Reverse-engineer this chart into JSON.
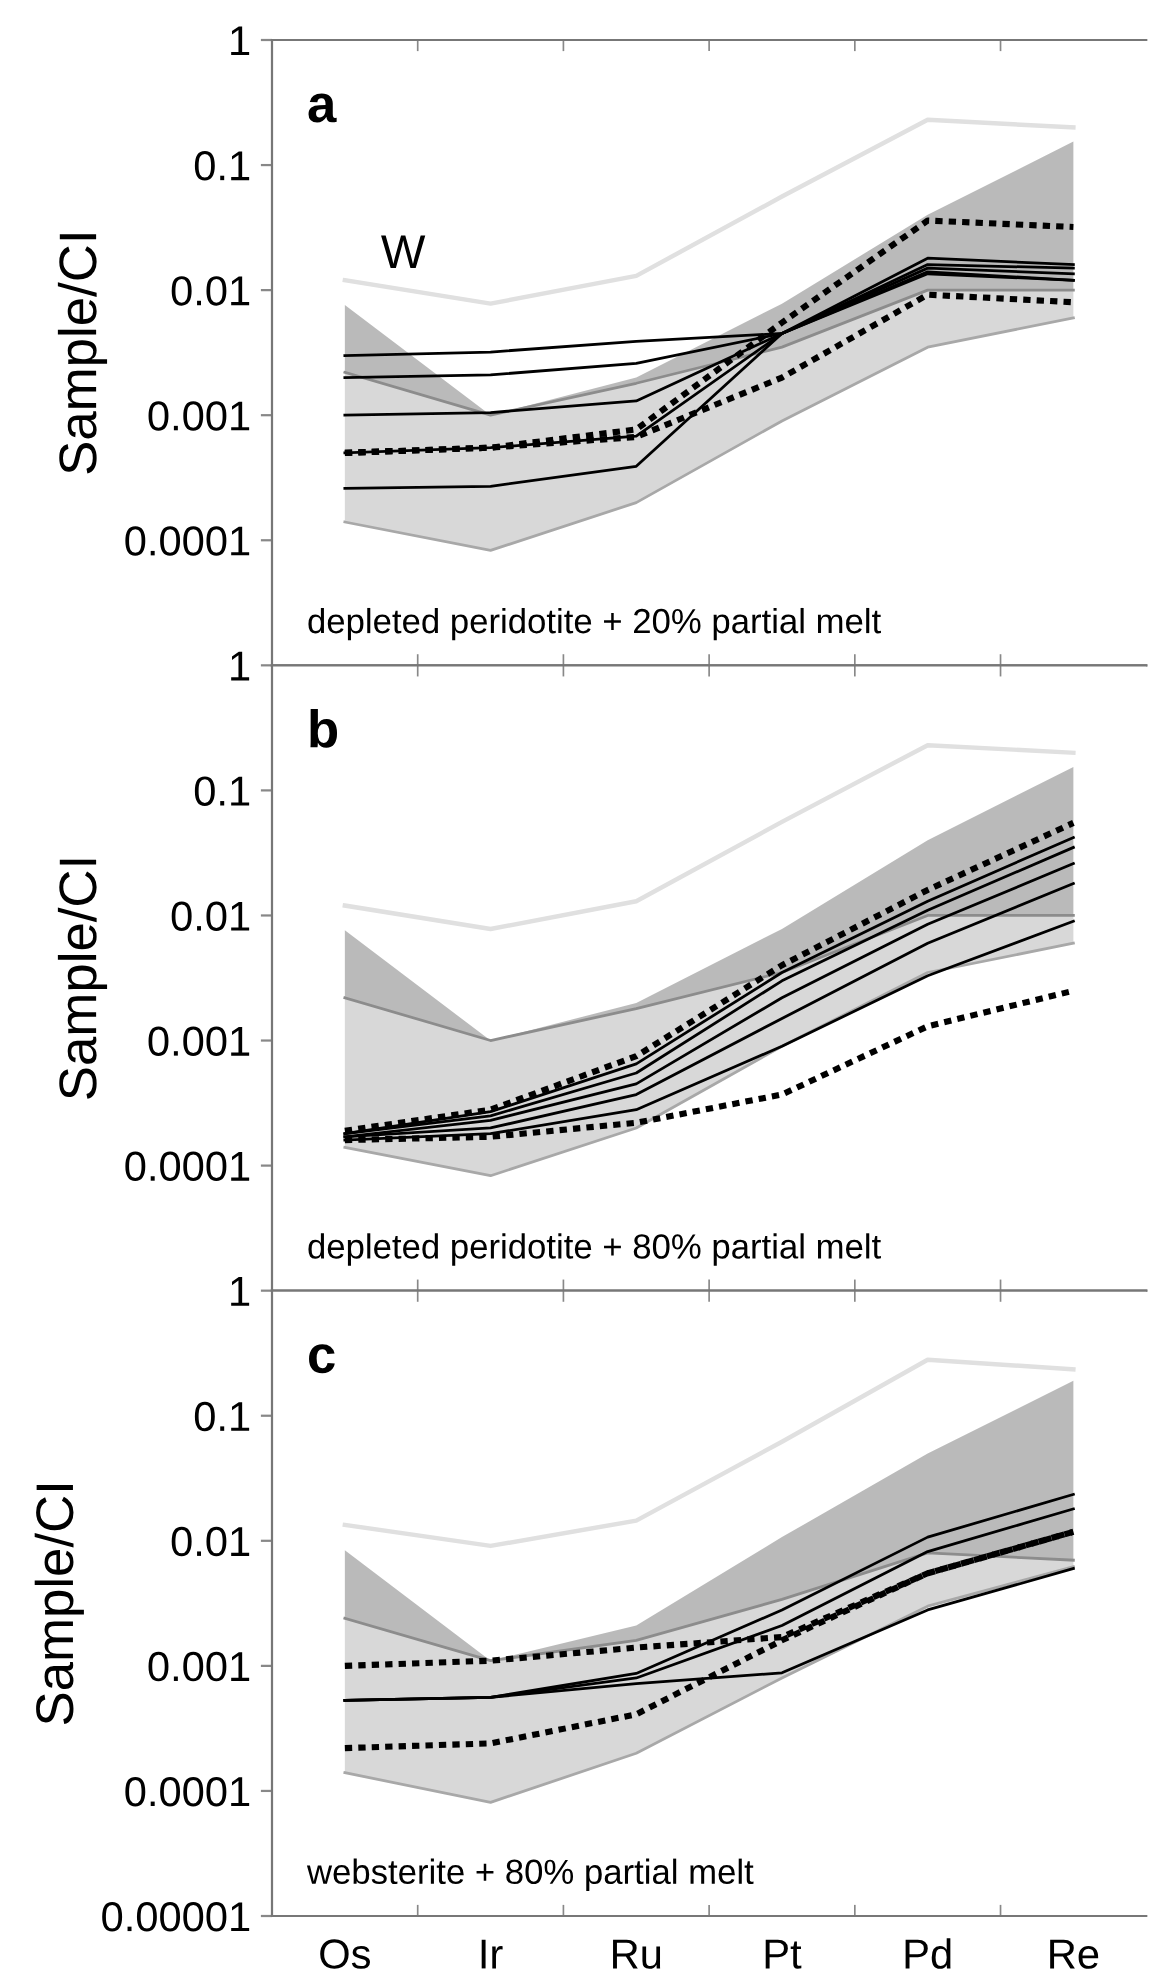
{
  "chart_data": [
    {
      "type": "line",
      "title": "a",
      "ylabel": "Sample/CI",
      "log": true,
      "tick_labels": "y",
      "ylim": [
        1e-05,
        1
      ],
      "yticks": [
        0.0001,
        0.001,
        0.01,
        0.1,
        1
      ],
      "annotations": [
        "depleted peridotite + 20% partial melt",
        "W"
      ],
      "series": [
        {
          "color": "#a8a8a8",
          "line_style": "solid",
          "values": [
            0.00014,
            8.3e-05,
            0.0002,
            0.0009,
            0.0035,
            0.006
          ],
          "lower": [
            0.00014,
            8.3e-05,
            0.0002,
            0.0009,
            0.0035,
            0.006
          ],
          "upper": [
            0.0022,
            0.001,
            0.0018,
            0.0035,
            0.01,
            0.01
          ]
        },
        {
          "color": "#8c8c8c",
          "line_style": "solid",
          "values": [
            0.0022,
            0.001,
            0.0018,
            0.0035,
            0.01,
            0.01
          ],
          "lower": [
            0.0022,
            0.001,
            0.0018,
            0.0035,
            0.01,
            0.01
          ],
          "upper": [
            0.0076,
            0.001,
            0.002,
            0.0078,
            0.04,
            0.154
          ]
        },
        {
          "color": "#e0e0e0",
          "line_style": "solid",
          "values": [
            0.012,
            0.0078,
            0.013,
            0.056,
            0.23,
            0.2
          ]
        },
        {
          "color": "#000000",
          "line_style": "solid",
          "values": [
            0.003,
            0.0032,
            0.0039,
            0.0045,
            0.018,
            0.016
          ]
        },
        {
          "color": "#000000",
          "line_style": "solid",
          "values": [
            0.002,
            0.0021,
            0.0026,
            0.0045,
            0.016,
            0.015
          ]
        },
        {
          "color": "#000000",
          "line_style": "solid",
          "values": [
            0.001,
            0.00105,
            0.0013,
            0.0045,
            0.015,
            0.0135
          ]
        },
        {
          "color": "#000000",
          "line_style": "solid",
          "values": [
            0.0005,
            0.00055,
            0.00068,
            0.0045,
            0.014,
            0.012
          ]
        },
        {
          "color": "#000000",
          "line_style": "solid",
          "values": [
            0.00026,
            0.00027,
            0.00039,
            0.0045,
            0.0135,
            0.012
          ]
        },
        {
          "color": "#000000",
          "line_style": "dotted",
          "values": [
            0.0005,
            0.00055,
            0.00077,
            0.0055,
            0.036,
            0.032
          ]
        },
        {
          "color": "#000000",
          "line_style": "dotted",
          "values": [
            0.0005,
            0.00055,
            0.00067,
            0.002,
            0.0092,
            0.008
          ]
        }
      ]
    },
    {
      "type": "line",
      "title": "b",
      "ylabel": "Sample/CI",
      "log": true,
      "tick_labels": "y",
      "ylim": [
        1e-05,
        1
      ],
      "yticks": [
        0.0001,
        0.001,
        0.01,
        0.1,
        1
      ],
      "annotations": [
        "depleted peridotite + 80% partial melt"
      ],
      "series": [
        {
          "color": "#a8a8a8",
          "line_style": "solid",
          "values": [
            0.00014,
            8.3e-05,
            0.0002,
            0.0009,
            0.0035,
            0.006
          ],
          "lower": [
            0.00014,
            8.3e-05,
            0.0002,
            0.0009,
            0.0035,
            0.006
          ],
          "upper": [
            0.0022,
            0.001,
            0.0018,
            0.0035,
            0.01,
            0.01
          ]
        },
        {
          "color": "#8c8c8c",
          "line_style": "solid",
          "values": [
            0.0022,
            0.001,
            0.0018,
            0.0035,
            0.01,
            0.01
          ],
          "lower": [
            0.0022,
            0.001,
            0.0018,
            0.0035,
            0.01,
            0.01
          ],
          "upper": [
            0.0076,
            0.001,
            0.002,
            0.0078,
            0.04,
            0.154
          ]
        },
        {
          "color": "#e0e0e0",
          "line_style": "solid",
          "values": [
            0.012,
            0.0078,
            0.013,
            0.056,
            0.23,
            0.2
          ]
        },
        {
          "color": "#000000",
          "line_style": "solid",
          "values": [
            0.00018,
            0.00027,
            0.00065,
            0.0035,
            0.013,
            0.042
          ]
        },
        {
          "color": "#000000",
          "line_style": "solid",
          "values": [
            0.00018,
            0.00025,
            0.00055,
            0.003,
            0.011,
            0.035
          ]
        },
        {
          "color": "#000000",
          "line_style": "solid",
          "values": [
            0.00017,
            0.00023,
            0.00045,
            0.0022,
            0.0085,
            0.026
          ]
        },
        {
          "color": "#000000",
          "line_style": "solid",
          "values": [
            0.00017,
            0.0002,
            0.00037,
            0.0015,
            0.006,
            0.018
          ]
        },
        {
          "color": "#000000",
          "line_style": "solid",
          "values": [
            0.00016,
            0.00018,
            0.00028,
            0.0009,
            0.0033,
            0.009
          ]
        },
        {
          "color": "#000000",
          "line_style": "dotted",
          "values": [
            0.00019,
            0.00028,
            0.00075,
            0.004,
            0.016,
            0.055
          ]
        },
        {
          "color": "#000000",
          "line_style": "dotted",
          "values": [
            0.00016,
            0.00017,
            0.00022,
            0.00037,
            0.0013,
            0.0025
          ]
        }
      ]
    },
    {
      "type": "line",
      "title": "c",
      "ylabel": "Sample/CI",
      "log": true,
      "categories": [
        "Os",
        "Ir",
        "Ru",
        "Pt",
        "Pd",
        "Re"
      ],
      "ylim": [
        1e-05,
        1
      ],
      "yticks": [
        {
          "value": 1e-05,
          "label": "0.00001"
        },
        0.0001,
        0.001,
        0.01,
        0.1,
        1
      ],
      "annotations": [
        "websterite + 80% partial melt"
      ],
      "series": [
        {
          "color": "#a8a8a8",
          "line_style": "solid",
          "values": [
            0.00014,
            8.1e-05,
            0.0002,
            0.0008,
            0.003,
            0.0062
          ],
          "lower": [
            0.00014,
            8.1e-05,
            0.0002,
            0.0008,
            0.003,
            0.0062
          ],
          "upper": [
            0.0024,
            0.0011,
            0.0016,
            0.0034,
            0.008,
            0.007
          ]
        },
        {
          "color": "#8c8c8c",
          "line_style": "solid",
          "values": [
            0.0024,
            0.0011,
            0.0016,
            0.0034,
            0.008,
            0.007
          ],
          "lower": [
            0.0024,
            0.0011,
            0.0016,
            0.0034,
            0.008,
            0.007
          ],
          "upper": [
            0.0084,
            0.0011,
            0.0021,
            0.0107,
            0.05,
            0.19
          ]
        },
        {
          "color": "#e0e0e0",
          "line_style": "solid",
          "values": [
            0.0134,
            0.0091,
            0.0145,
            0.062,
            0.28,
            0.235
          ]
        },
        {
          "color": "#000000",
          "line_style": "solid",
          "values": [
            0.00053,
            0.00056,
            0.00087,
            0.0028,
            0.0107,
            0.0235
          ]
        },
        {
          "color": "#000000",
          "line_style": "solid",
          "values": [
            0.00053,
            0.00056,
            0.0008,
            0.0021,
            0.0082,
            0.018
          ]
        },
        {
          "color": "#000000",
          "line_style": "solid",
          "values": [
            0.00053,
            0.00056,
            0.00072,
            0.00088,
            0.0028,
            0.006
          ]
        },
        {
          "color": "#000000",
          "line_style": "dotted",
          "values": [
            0.001,
            0.0011,
            0.0014,
            0.0017,
            0.0055,
            0.0118
          ]
        },
        {
          "color": "#000000",
          "line_style": "dotted",
          "values": [
            0.00022,
            0.00024,
            0.00041,
            0.0016,
            0.0055,
            0.0118
          ]
        }
      ]
    }
  ]
}
